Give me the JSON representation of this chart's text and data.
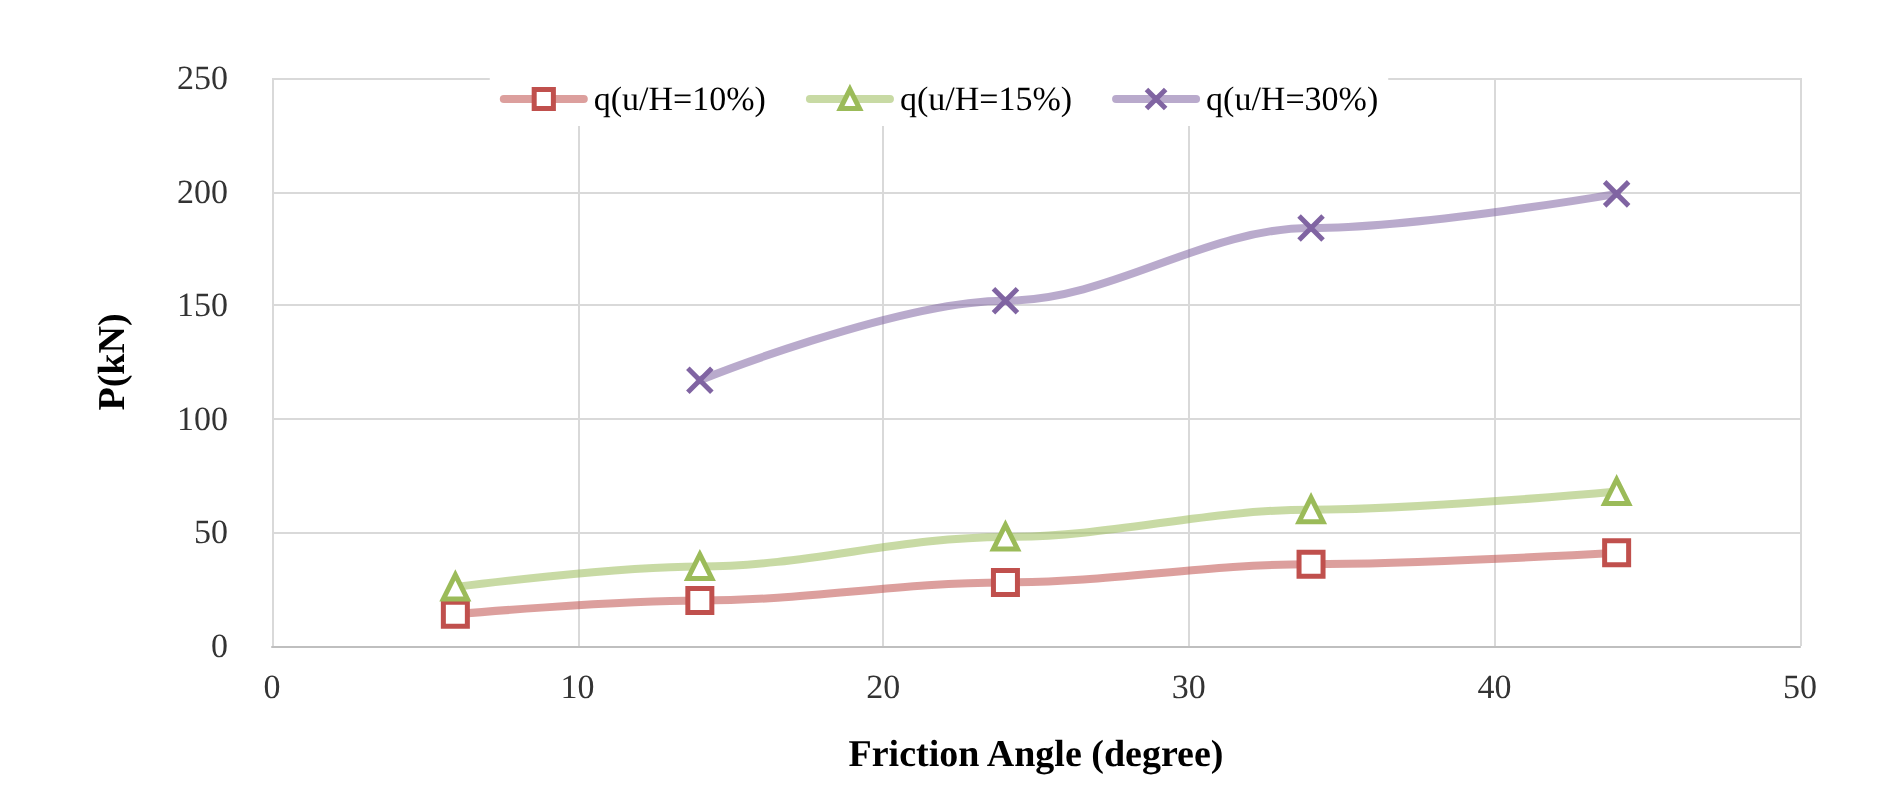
{
  "chart_data": {
    "type": "line",
    "xlabel": "Friction Angle (degree)",
    "ylabel": "P(kN)",
    "xlim": [
      0,
      50
    ],
    "xticks": [
      0,
      10,
      20,
      30,
      40,
      50
    ],
    "ylim": [
      0,
      250
    ],
    "yticks": [
      0,
      50,
      100,
      150,
      200,
      250
    ],
    "grid": true,
    "legend": "top",
    "line_style": "solid",
    "series": [
      {
        "name": "q(u/H=10%)",
        "color": "#c0504d",
        "marker": "square",
        "x": [
          6,
          14,
          24,
          34,
          44
        ],
        "values": [
          14,
          20,
          28,
          36,
          41
        ]
      },
      {
        "name": "q(u/H=15%)",
        "color": "#9bbb59",
        "marker": "triangle",
        "x": [
          6,
          14,
          24,
          34,
          44
        ],
        "values": [
          26,
          35,
          48,
          60,
          68
        ]
      },
      {
        "name": "q(u/H=30%)",
        "color": "#8064a2",
        "marker": "cross",
        "x": [
          14,
          24,
          34,
          44
        ],
        "values": [
          117,
          152,
          184,
          199
        ]
      }
    ]
  }
}
